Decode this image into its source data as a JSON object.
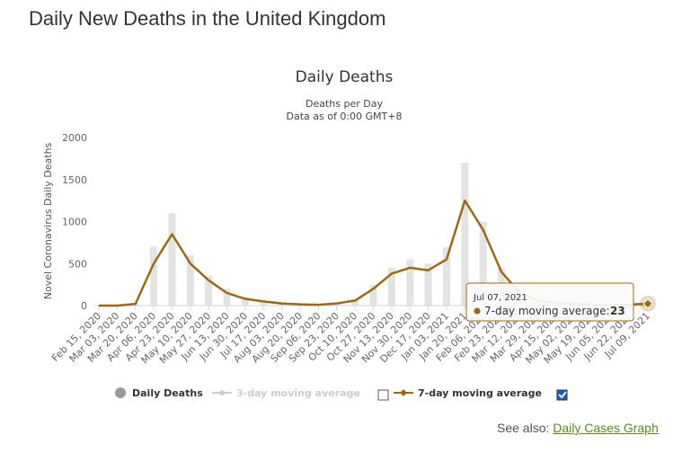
{
  "page_title": "Daily New Deaths in the United Kingdom",
  "chart_data": {
    "type": "bar-line",
    "title": "Daily Deaths",
    "subtitle": [
      "Deaths per Day",
      "Data as of 0:00 GMT+8"
    ],
    "y_label": "Novel Coronavirus Daily Deaths",
    "categories": [
      "Feb 15, 2020",
      "Mar 03, 2020",
      "Mar 20, 2020",
      "Apr 06, 2020",
      "Apr 23, 2020",
      "May 10, 2020",
      "May 27, 2020",
      "Jun 13, 2020",
      "Jun 30, 2020",
      "Jul 17, 2020",
      "Aug 03, 2020",
      "Aug 20, 2020",
      "Sep 06, 2020",
      "Sep 23, 2020",
      "Oct 10, 2020",
      "Oct 27, 2020",
      "Nov 13, 2020",
      "Nov 30, 2020",
      "Dec 17, 2020",
      "Jan 03, 2021",
      "Jan 20, 2021",
      "Feb 06, 2021",
      "Feb 23, 2021",
      "Mar 12, 2021",
      "Mar 29, 2021",
      "Apr 15, 2021",
      "May 02, 2021",
      "May 19, 2021",
      "Jun 05, 2021",
      "Jun 22, 2021",
      "Jul 09, 2021"
    ],
    "series": [
      {
        "name": "Daily Deaths",
        "color": "#e3e3e3",
        "legend_color": "#999999",
        "values": [
          0,
          0,
          30,
          700,
          1100,
          600,
          350,
          200,
          100,
          60,
          30,
          20,
          15,
          30,
          80,
          250,
          450,
          550,
          500,
          700,
          1700,
          1000,
          450,
          170,
          70,
          35,
          25,
          12,
          10,
          15,
          30
        ]
      },
      {
        "name": "7-day moving average",
        "color": "#a0680f",
        "values": [
          0,
          0,
          20,
          500,
          850,
          500,
          300,
          150,
          80,
          50,
          25,
          15,
          10,
          25,
          60,
          200,
          380,
          450,
          420,
          550,
          1250,
          900,
          400,
          150,
          60,
          30,
          20,
          10,
          8,
          12,
          23
        ]
      }
    ],
    "hidden_series": [
      {
        "name": "3-day moving average",
        "color": "#cccccc"
      }
    ],
    "ylim": [
      0,
      2000
    ],
    "yticks": [
      0,
      500,
      1000,
      1500,
      2000
    ],
    "grid": false,
    "tooltip": {
      "date": "Jul 07, 2021",
      "label": "7-day moving average:",
      "value": 23
    }
  },
  "see_also": {
    "label": "See also:",
    "link": "Daily Cases Graph"
  }
}
